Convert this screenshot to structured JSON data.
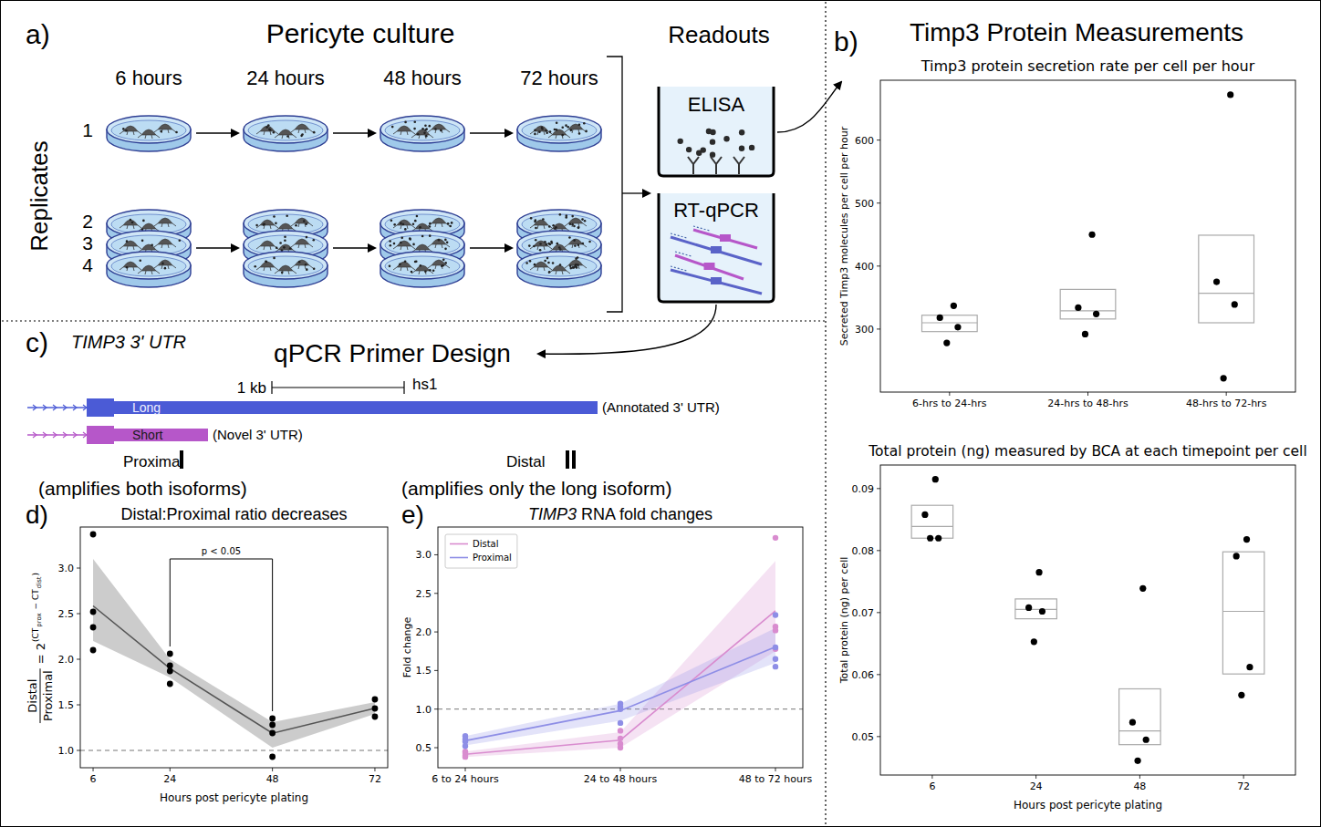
{
  "schematic": {
    "label": "a)",
    "title": "Pericyte culture",
    "timepoints": [
      "6 hours",
      "24 hours",
      "48 hours",
      "72 hours"
    ],
    "replicates_label": "Replicates",
    "replicates": [
      "1",
      "2",
      "3",
      "4"
    ],
    "readouts_title": "Readouts",
    "readouts": [
      "ELISA",
      "RT-qPCR"
    ]
  },
  "primer_design": {
    "label": "c)",
    "gene": "TIMP3 3' UTR",
    "title": "qPCR Primer Design",
    "scale_bar": "1 kb",
    "assembly": "hs1",
    "isoforms": [
      {
        "name": "Long",
        "note": "(Annotated 3' UTR)",
        "color": "#4b5bd6"
      },
      {
        "name": "Short",
        "note": "(Novel 3' UTR)",
        "color": "#b657c9"
      }
    ],
    "primers": [
      {
        "name": "Proximal",
        "note": "(amplifies both isoforms)"
      },
      {
        "name": "Distal",
        "note": "(amplifies only the long isoform)"
      }
    ]
  },
  "panel_b": {
    "label": "b)",
    "title": "Timp3 Protein Measurements"
  },
  "chart_data": [
    {
      "type": "box",
      "title": "Timp3 protein secretion rate per cell per hour",
      "y_label": "Secreted Timp3 molecules per cell per hour",
      "categories": [
        "6-hrs to 24-hrs",
        "24-hrs to 48-hrs",
        "48-hrs to 72-hrs"
      ],
      "points": [
        [
          337,
          318,
          303,
          278
        ],
        [
          450,
          334,
          324,
          292
        ],
        [
          672,
          375,
          339,
          222
        ]
      ],
      "boxes": [
        {
          "q1": 296,
          "median": 310,
          "q3": 322
        },
        {
          "q1": 316,
          "median": 329,
          "q3": 363
        },
        {
          "q1": 310,
          "median": 357,
          "q3": 449
        }
      ],
      "color": "#000000",
      "ylim": [
        200,
        695
      ],
      "yticks": [
        300,
        400,
        500,
        600
      ]
    },
    {
      "type": "box",
      "title": "Total protein (ng) measured by BCA at each timepoint per cell",
      "x_label": "Hours post pericyte plating",
      "y_label": "Total protein (ng) per cell",
      "categories": [
        "6",
        "24",
        "48",
        "72"
      ],
      "points": [
        [
          0.0915,
          0.0858,
          0.082,
          0.082
        ],
        [
          0.0765,
          0.0708,
          0.0702,
          0.0653
        ],
        [
          0.0739,
          0.0523,
          0.0495,
          0.0461
        ],
        [
          0.0818,
          0.0791,
          0.0612,
          0.0567
        ]
      ],
      "boxes": [
        {
          "q1": 0.082,
          "median": 0.0839,
          "q3": 0.0873
        },
        {
          "q1": 0.069,
          "median": 0.0705,
          "q3": 0.0722
        },
        {
          "q1": 0.0487,
          "median": 0.0509,
          "q3": 0.0577
        },
        {
          "q1": 0.0601,
          "median": 0.0702,
          "q3": 0.0798
        }
      ],
      "color": "#000000",
      "ylim": [
        0.0438,
        0.0938
      ],
      "yticks": [
        0.05,
        0.06,
        0.07,
        0.08,
        0.09
      ]
    },
    {
      "type": "line",
      "panel": "d)",
      "title": "Distal:Proximal ratio decreases",
      "x_label": "Hours post pericyte plating",
      "y_label_fraction": [
        "Distal",
        "Proximal"
      ],
      "y_label_formula": [
        "= 2",
        "(CT",
        "prox",
        " − CT",
        "dist",
        ")"
      ],
      "x": [
        6,
        24,
        48,
        72
      ],
      "points": [
        [
          3.37,
          2.52,
          2.35,
          2.1
        ],
        [
          2.06,
          1.93,
          1.87,
          1.73
        ],
        [
          1.35,
          1.28,
          1.19,
          0.93
        ],
        [
          1.56,
          1.46,
          1.37
        ]
      ],
      "values": [
        2.585,
        1.898,
        1.188,
        1.463
      ],
      "ci_lower": [
        2.2,
        1.8,
        1.03,
        1.4
      ],
      "ci_upper": [
        3.1,
        2.0,
        1.31,
        1.53
      ],
      "color": "#555555",
      "hline": 1,
      "annotation": {
        "text": "p < 0.05",
        "x": [
          24,
          48
        ],
        "y": 3.1
      },
      "xlim": [
        3,
        75
      ],
      "xticks": [
        6,
        24,
        48,
        72
      ],
      "ylim": [
        0.81,
        3.45
      ],
      "yticks": [
        {
          "value": 1,
          "label": "1.0"
        },
        1.5,
        {
          "value": 2,
          "label": "2.0"
        },
        2.5,
        {
          "value": 3,
          "label": "3.0"
        }
      ]
    },
    {
      "type": "line",
      "panel": "e)",
      "title": "TIMP3 RNA fold changes",
      "y_label": "Fold change",
      "categories": [
        "6 to 24 hours",
        "24 to 48 hours",
        "48 to 72 hours"
      ],
      "series": [
        {
          "name": "Distal",
          "color": "#d98ccf",
          "points": [
            [
              0.45,
              0.43,
              0.4,
              0.38
            ],
            [
              0.72,
              0.62,
              0.55,
              0.5
            ],
            [
              3.22,
              2.07,
              2.02,
              1.78
            ]
          ],
          "values": [
            0.415,
            0.598,
            2.273
          ],
          "ci_lower": [
            0.38,
            0.5,
            1.75
          ],
          "ci_upper": [
            0.45,
            0.7,
            2.92
          ]
        },
        {
          "name": "Proximal",
          "color": "#8e8ee6",
          "points": [
            [
              0.65,
              0.61,
              0.58,
              0.52
            ],
            [
              1.07,
              1.03,
              1.0,
              0.82
            ],
            [
              2.22,
              1.8,
              1.65,
              1.55
            ]
          ],
          "values": [
            0.59,
            0.98,
            1.805
          ],
          "ci_lower": [
            0.53,
            0.85,
            1.6
          ],
          "ci_upper": [
            0.65,
            1.07,
            2.05
          ]
        }
      ],
      "legend": "upper left",
      "hline": 1,
      "ylim": [
        0.24,
        3.36
      ],
      "yticks": [
        0.5,
        {
          "value": 1,
          "label": "1.0"
        },
        1.5,
        {
          "value": 2,
          "label": "2.0"
        },
        2.5,
        {
          "value": 3,
          "label": "3.0"
        }
      ]
    }
  ]
}
